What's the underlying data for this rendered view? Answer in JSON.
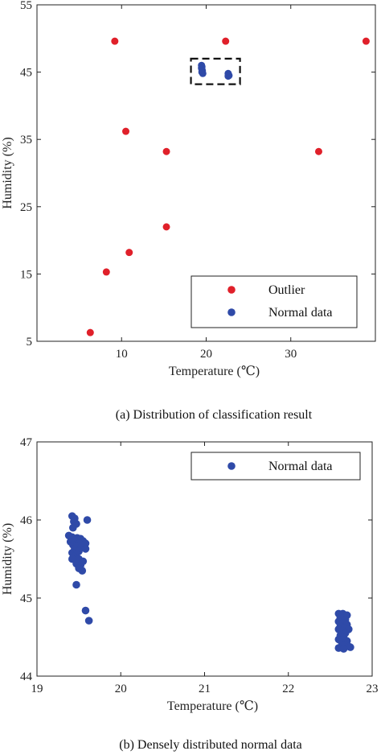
{
  "chart_data": [
    {
      "type": "scatter",
      "caption": "(a)  Distribution of classification result",
      "xlabel": "Temperature (℃)",
      "ylabel": "Humidity (%)",
      "xlim": [
        0,
        40
      ],
      "ylim": [
        5,
        55
      ],
      "xticks": [
        10,
        20,
        30
      ],
      "yticks": [
        5,
        15,
        25,
        35,
        45,
        55
      ],
      "grid": false,
      "legend_position": "bottom-right",
      "highlight_box": {
        "x": [
          18.2,
          24.0
        ],
        "y": [
          43.2,
          47.0
        ]
      },
      "series": [
        {
          "name": "Outlier",
          "color": "#e0202a",
          "points": [
            [
              9.2,
              49.6
            ],
            [
              22.3,
              49.6
            ],
            [
              38.9,
              49.6
            ],
            [
              10.5,
              36.2
            ],
            [
              15.3,
              33.2
            ],
            [
              33.3,
              33.2
            ],
            [
              15.3,
              22.0
            ],
            [
              10.9,
              18.2
            ],
            [
              8.2,
              15.3
            ],
            [
              6.3,
              6.3
            ]
          ]
        },
        {
          "name": "Normal data",
          "color": "#2f4aa8",
          "points": [
            [
              19.45,
              46.0
            ],
            [
              19.5,
              45.8
            ],
            [
              19.45,
              45.6
            ],
            [
              19.5,
              45.4
            ],
            [
              19.55,
              45.2
            ],
            [
              19.5,
              45.0
            ],
            [
              19.6,
              44.8
            ],
            [
              22.6,
              44.8
            ],
            [
              22.65,
              44.6
            ],
            [
              22.7,
              44.5
            ],
            [
              22.6,
              44.4
            ]
          ]
        }
      ]
    },
    {
      "type": "scatter",
      "caption": "(b)  Densely distributed normal data",
      "xlabel": "Temperature (℃)",
      "ylabel": "Humidity (%)",
      "xlim": [
        19,
        23
      ],
      "ylim": [
        44,
        47
      ],
      "xticks": [
        19,
        20,
        21,
        22,
        23
      ],
      "yticks": [
        44,
        45,
        46,
        47
      ],
      "grid": false,
      "legend_position": "top-right",
      "series": [
        {
          "name": "Normal data",
          "color": "#2f4aa8",
          "points": [
            [
              19.42,
              46.05
            ],
            [
              19.45,
              46.02
            ],
            [
              19.44,
              45.98
            ],
            [
              19.47,
              45.95
            ],
            [
              19.43,
              45.9
            ],
            [
              19.6,
              46.0
            ],
            [
              19.38,
              45.8
            ],
            [
              19.42,
              45.78
            ],
            [
              19.48,
              45.77
            ],
            [
              19.52,
              45.76
            ],
            [
              19.45,
              45.74
            ],
            [
              19.55,
              45.73
            ],
            [
              19.4,
              45.72
            ],
            [
              19.5,
              45.7
            ],
            [
              19.58,
              45.7
            ],
            [
              19.43,
              45.68
            ],
            [
              19.47,
              45.66
            ],
            [
              19.53,
              45.65
            ],
            [
              19.45,
              45.63
            ],
            [
              19.58,
              45.63
            ],
            [
              19.5,
              45.6
            ],
            [
              19.42,
              45.58
            ],
            [
              19.47,
              45.56
            ],
            [
              19.44,
              45.53
            ],
            [
              19.5,
              45.5
            ],
            [
              19.42,
              45.5
            ],
            [
              19.55,
              45.47
            ],
            [
              19.47,
              45.44
            ],
            [
              19.52,
              45.42
            ],
            [
              19.5,
              45.38
            ],
            [
              19.54,
              45.35
            ],
            [
              19.47,
              45.17
            ],
            [
              19.58,
              44.84
            ],
            [
              19.62,
              44.71
            ],
            [
              22.6,
              44.8
            ],
            [
              22.65,
              44.8
            ],
            [
              22.7,
              44.78
            ],
            [
              22.62,
              44.75
            ],
            [
              22.68,
              44.72
            ],
            [
              22.6,
              44.7
            ],
            [
              22.65,
              44.68
            ],
            [
              22.7,
              44.66
            ],
            [
              22.62,
              44.64
            ],
            [
              22.67,
              44.62
            ],
            [
              22.6,
              44.6
            ],
            [
              22.72,
              44.6
            ],
            [
              22.64,
              44.58
            ],
            [
              22.68,
              44.55
            ],
            [
              22.62,
              44.52
            ],
            [
              22.66,
              44.5
            ],
            [
              22.6,
              44.47
            ],
            [
              22.7,
              44.45
            ],
            [
              22.64,
              44.42
            ],
            [
              22.68,
              44.4
            ],
            [
              22.72,
              44.38
            ],
            [
              22.6,
              44.36
            ],
            [
              22.66,
              44.35
            ],
            [
              22.74,
              44.37
            ]
          ]
        }
      ]
    }
  ]
}
